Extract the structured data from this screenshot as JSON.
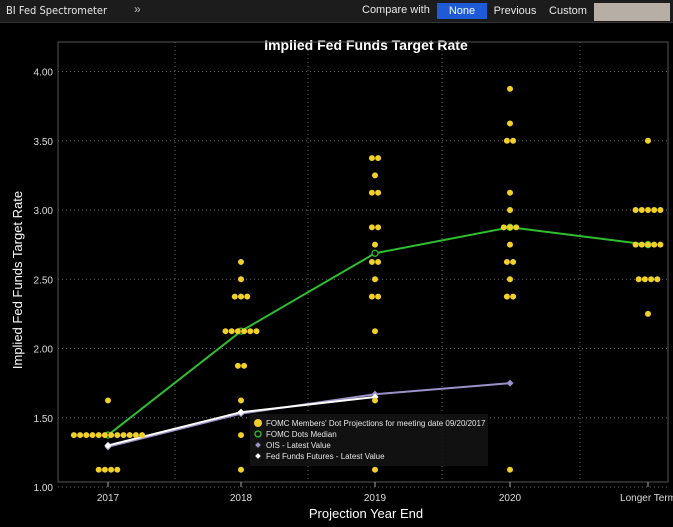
{
  "toolbar": {
    "app_title": "BI Fed Spectrometer",
    "expand_glyph": "»",
    "compare_label": "Compare with",
    "buttons": [
      {
        "label": "None",
        "selected": true
      },
      {
        "label": "Previous",
        "selected": false
      },
      {
        "label": "Custom",
        "selected": false
      }
    ]
  },
  "colors": {
    "dots": "#f2d02a",
    "median": "#2fbf2f",
    "ois": "#9a92c8",
    "futures": "#ffffff",
    "selected_button": "#1f5bd6",
    "custom_field": "#b7aea6"
  },
  "chart_data": {
    "type": "scatter",
    "title": "Implied Fed Funds Target Rate",
    "xlabel": "Projection Year End",
    "ylabel": "Implied Fed Funds Target Rate",
    "categories": [
      "2017",
      "2018",
      "2019",
      "2020",
      "Longer Term"
    ],
    "ylim": [
      0.9,
      4.1
    ],
    "yticks": [
      "1.00",
      "1.50",
      "2.00",
      "2.50",
      "3.00",
      "3.50",
      "4.00"
    ],
    "grid": true,
    "legend_position": "bottom-center",
    "series": [
      {
        "name": "FOMC Members' Dot Projections for meeting date 09/20/2017",
        "kind": "dots",
        "points": [
          {
            "x": "2017",
            "y": 1.125,
            "count": 4
          },
          {
            "x": "2017",
            "y": 1.375,
            "count": 12
          },
          {
            "x": "2017",
            "y": 1.625,
            "count": 1
          },
          {
            "x": "2018",
            "y": 1.125,
            "count": 1
          },
          {
            "x": "2018",
            "y": 1.375,
            "count": 1
          },
          {
            "x": "2018",
            "y": 1.625,
            "count": 1
          },
          {
            "x": "2018",
            "y": 1.875,
            "count": 2
          },
          {
            "x": "2018",
            "y": 2.125,
            "count": 6
          },
          {
            "x": "2018",
            "y": 2.375,
            "count": 3
          },
          {
            "x": "2018",
            "y": 2.5,
            "count": 1
          },
          {
            "x": "2018",
            "y": 2.625,
            "count": 1
          },
          {
            "x": "2019",
            "y": 1.125,
            "count": 1
          },
          {
            "x": "2019",
            "y": 1.625,
            "count": 1
          },
          {
            "x": "2019",
            "y": 2.125,
            "count": 1
          },
          {
            "x": "2019",
            "y": 2.375,
            "count": 2
          },
          {
            "x": "2019",
            "y": 2.5,
            "count": 1
          },
          {
            "x": "2019",
            "y": 2.625,
            "count": 2
          },
          {
            "x": "2019",
            "y": 2.75,
            "count": 1
          },
          {
            "x": "2019",
            "y": 2.875,
            "count": 2
          },
          {
            "x": "2019",
            "y": 3.125,
            "count": 2
          },
          {
            "x": "2019",
            "y": 3.25,
            "count": 1
          },
          {
            "x": "2019",
            "y": 3.375,
            "count": 2
          },
          {
            "x": "2020",
            "y": 1.125,
            "count": 1
          },
          {
            "x": "2020",
            "y": 2.375,
            "count": 2
          },
          {
            "x": "2020",
            "y": 2.5,
            "count": 1
          },
          {
            "x": "2020",
            "y": 2.625,
            "count": 2
          },
          {
            "x": "2020",
            "y": 2.75,
            "count": 1
          },
          {
            "x": "2020",
            "y": 2.875,
            "count": 3
          },
          {
            "x": "2020",
            "y": 3.0,
            "count": 1
          },
          {
            "x": "2020",
            "y": 3.125,
            "count": 1
          },
          {
            "x": "2020",
            "y": 3.5,
            "count": 2
          },
          {
            "x": "2020",
            "y": 3.625,
            "count": 1
          },
          {
            "x": "2020",
            "y": 3.875,
            "count": 1
          },
          {
            "x": "Longer Term",
            "y": 2.25,
            "count": 1
          },
          {
            "x": "Longer Term",
            "y": 2.5,
            "count": 4
          },
          {
            "x": "Longer Term",
            "y": 2.75,
            "count": 5
          },
          {
            "x": "Longer Term",
            "y": 3.0,
            "count": 5
          },
          {
            "x": "Longer Term",
            "y": 3.5,
            "count": 1
          }
        ]
      },
      {
        "name": "FOMC Dots Median",
        "kind": "line",
        "x": [
          "2017",
          "2018",
          "2019",
          "2020",
          "Longer Term"
        ],
        "values": [
          1.375,
          2.125,
          2.6875,
          2.875,
          2.75
        ]
      },
      {
        "name": "OIS - Latest Value",
        "kind": "line",
        "x": [
          "2017",
          "2018",
          "2019",
          "2020"
        ],
        "values": [
          1.29,
          1.53,
          1.67,
          1.75
        ]
      },
      {
        "name": "Fed Funds Futures - Latest Value",
        "kind": "line",
        "x": [
          "2017",
          "2018",
          "2019"
        ],
        "values": [
          1.3,
          1.54,
          1.65
        ]
      }
    ]
  }
}
